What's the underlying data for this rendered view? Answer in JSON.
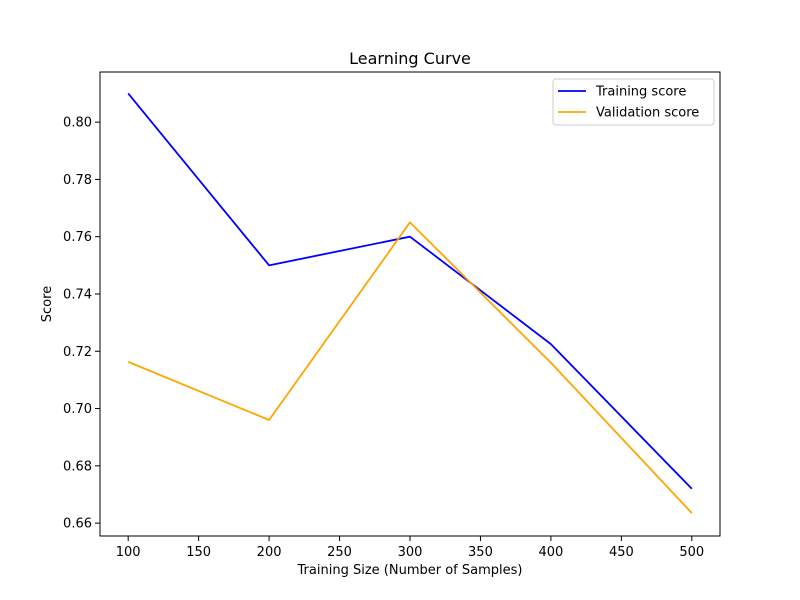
{
  "chart_data": {
    "type": "line",
    "title": "Learning Curve",
    "xlabel": "Training Size (Number of Samples)",
    "ylabel": "Score",
    "x": [
      100,
      200,
      300,
      400,
      500
    ],
    "series": [
      {
        "name": "Training score",
        "values": [
          0.81,
          0.75,
          0.76,
          0.7225,
          0.672
        ],
        "color": "#0000ff"
      },
      {
        "name": "Validation score",
        "values": [
          0.7163,
          0.696,
          0.765,
          0.716,
          0.6635
        ],
        "color": "#ffa500"
      }
    ],
    "xlim": [
      80,
      520
    ],
    "ylim": [
      0.6555,
      0.8175
    ],
    "xticks": [
      100,
      150,
      200,
      250,
      300,
      350,
      400,
      450,
      500
    ],
    "yticks": [
      0.66,
      0.68,
      0.7,
      0.72,
      0.74,
      0.76,
      0.78,
      0.8
    ],
    "ytick_labels": [
      "0.66",
      "0.68",
      "0.70",
      "0.72",
      "0.74",
      "0.76",
      "0.78",
      "0.80"
    ],
    "grid": false,
    "legend_position": "top-right"
  }
}
